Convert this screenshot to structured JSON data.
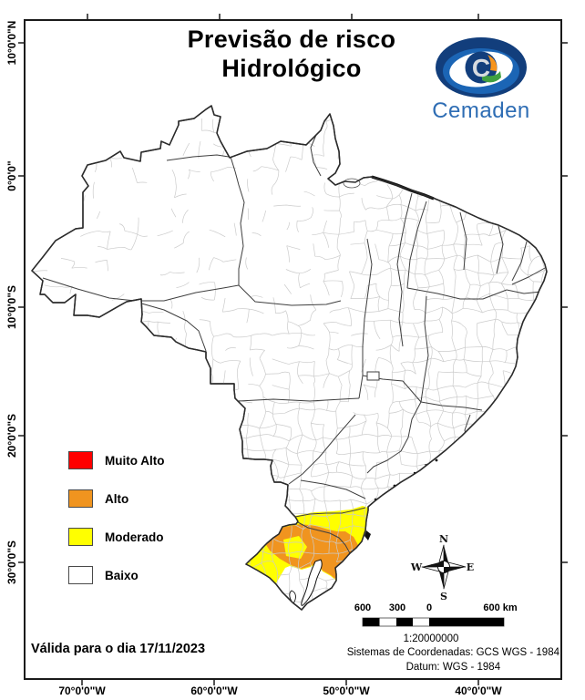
{
  "header": {
    "title_line1": "Previsão de risco",
    "title_line2": "Hidrológico"
  },
  "logo": {
    "text": "Cemaden",
    "colors": {
      "navy": "#123E7C",
      "blue": "#1B65B5",
      "light_blue": "#3F97D3",
      "silver": "#D7DBE0",
      "orange": "#F7941D",
      "green": "#3FA040",
      "text_color": "#2E6DB4"
    }
  },
  "axes": {
    "lat_labels": [
      "10°0'0\"N",
      "0°0'0\"",
      "10°0'0\"S",
      "20°0'0\"S",
      "30°0'0\"S"
    ],
    "lon_labels": [
      "70°0'0\"W",
      "60°0'0\"W",
      "50°0'0\"W",
      "40°0'0\"W"
    ]
  },
  "legend": {
    "items": [
      {
        "label": "Muito Alto",
        "color": "#FF0000"
      },
      {
        "label": "Alto",
        "color": "#F0941F"
      },
      {
        "label": "Moderado",
        "color": "#FFFF00"
      },
      {
        "label": "Baixo",
        "color": "#FFFFFF"
      }
    ]
  },
  "compass": {
    "n": "N",
    "s": "S",
    "e": "E",
    "w": "W"
  },
  "scalebar": {
    "labels": [
      "600",
      "300",
      "0",
      "600 km"
    ],
    "ratio": "1:20000000"
  },
  "map": {
    "state_line": "#3F3F3F",
    "muni_line": "#CBCBCB",
    "outline": "#2B2B2B",
    "water_detail": "#111111"
  },
  "footer": {
    "validity": "Válida para o dia 17/11/2023",
    "crs_line1": "Sistemas de Coordenadas: GCS WGS - 1984",
    "crs_line2": "Datum: WGS - 1984"
  }
}
